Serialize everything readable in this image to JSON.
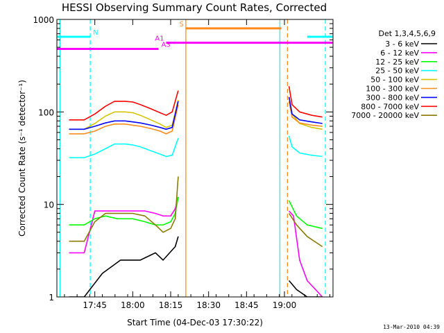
{
  "chart_data": {
    "type": "line",
    "title": "HESSI Observing Summary Count Rates, Corrected",
    "xlabel": "Start Time (04-Dec-03 17:30:22)",
    "ylabel": "Corrected Count Rate (s⁻¹ detector⁻¹)",
    "y_scale": "log",
    "ylim": [
      1,
      1000
    ],
    "xlim_minutes": [
      17.5,
      19.32
    ],
    "x_tick_labels": [
      "17:45",
      "18:00",
      "18:15",
      "18:30",
      "18:45",
      "19:00"
    ],
    "x_tick_values": [
      17.75,
      18.0,
      18.25,
      18.5,
      18.75,
      19.0
    ],
    "y_tick_labels": [
      "1",
      "10",
      "100",
      "1000"
    ],
    "y_tick_values": [
      1,
      10,
      100,
      1000
    ],
    "legend_title": "Det 1,3,4,5,6,9",
    "legend_placement": "right",
    "data_gap": [
      18.31,
      19.02
    ],
    "series": [
      {
        "name": "3 - 6 keV",
        "color": "#000000",
        "x": [
          17.58,
          17.68,
          17.8,
          17.92,
          18.05,
          18.15,
          18.2,
          18.28,
          18.3,
          19.03,
          19.08,
          19.15,
          19.25
        ],
        "y": [
          1.0,
          1.0,
          1.8,
          2.5,
          2.5,
          3.0,
          2.5,
          3.5,
          4.5,
          1.5,
          1.2,
          1.0,
          1.0
        ]
      },
      {
        "name": "6 - 12 keV",
        "color": "#ff00ff",
        "x": [
          17.58,
          17.68,
          17.75,
          17.82,
          17.9,
          18.0,
          18.08,
          18.15,
          18.2,
          18.25,
          18.28,
          18.3,
          19.03,
          19.06,
          19.1,
          19.15,
          19.25
        ],
        "y": [
          3.0,
          3.0,
          8.5,
          8.5,
          8.5,
          8.5,
          8.5,
          8.0,
          7.5,
          7.5,
          9.0,
          12.0,
          8.5,
          7.5,
          2.5,
          1.5,
          1.0
        ]
      },
      {
        "name": "12 - 25 keV",
        "color": "#00ff00",
        "x": [
          17.58,
          17.68,
          17.75,
          17.82,
          17.9,
          18.0,
          18.08,
          18.15,
          18.2,
          18.25,
          18.28,
          18.3,
          19.03,
          19.08,
          19.15,
          19.25
        ],
        "y": [
          6.0,
          6.0,
          7.0,
          7.5,
          7.0,
          7.0,
          6.5,
          6.0,
          6.0,
          6.5,
          8.0,
          12.0,
          11.0,
          7.5,
          6.0,
          5.5
        ]
      },
      {
        "name": "25 - 50 keV",
        "color": "#00ffff",
        "x": [
          17.58,
          17.68,
          17.75,
          17.82,
          17.88,
          17.95,
          18.0,
          18.05,
          18.12,
          18.18,
          18.22,
          18.26,
          18.3,
          19.03,
          19.05,
          19.1,
          19.18,
          19.25
        ],
        "y": [
          32,
          32,
          35,
          40,
          45,
          45,
          44,
          42,
          38,
          35,
          33,
          34,
          52,
          55,
          42,
          36,
          34,
          33
        ]
      },
      {
        "name": "50 - 100 keV",
        "color": "#d4c400",
        "x": [
          17.58,
          17.68,
          17.75,
          17.82,
          17.88,
          17.95,
          18.0,
          18.05,
          18.12,
          18.18,
          18.22,
          18.26,
          18.3,
          19.03,
          19.05,
          19.1,
          19.18,
          19.25
        ],
        "y": [
          65,
          65,
          75,
          90,
          100,
          100,
          98,
          92,
          82,
          74,
          68,
          72,
          135,
          145,
          95,
          75,
          68,
          65
        ]
      },
      {
        "name": "100 - 300 keV",
        "color": "#ff8c1a",
        "x": [
          17.58,
          17.68,
          17.75,
          17.82,
          17.88,
          17.95,
          18.0,
          18.05,
          18.12,
          18.18,
          18.22,
          18.26,
          18.3,
          19.03,
          19.05,
          19.1,
          19.18,
          19.25
        ],
        "y": [
          58,
          58,
          62,
          70,
          74,
          74,
          72,
          70,
          66,
          62,
          58,
          62,
          120,
          130,
          88,
          76,
          72,
          70
        ]
      },
      {
        "name": "300 - 800 keV",
        "color": "#0000ff",
        "x": [
          17.58,
          17.68,
          17.75,
          17.82,
          17.88,
          17.95,
          18.0,
          18.05,
          18.12,
          18.18,
          18.22,
          18.26,
          18.3,
          19.03,
          19.05,
          19.1,
          19.18,
          19.25
        ],
        "y": [
          65,
          65,
          70,
          76,
          80,
          80,
          78,
          76,
          72,
          68,
          65,
          68,
          130,
          145,
          95,
          82,
          78,
          75
        ]
      },
      {
        "name": "800 - 7000 keV",
        "color": "#ff0000",
        "x": [
          17.58,
          17.68,
          17.75,
          17.82,
          17.88,
          17.95,
          18.0,
          18.05,
          18.12,
          18.18,
          18.22,
          18.26,
          18.3,
          19.03,
          19.05,
          19.1,
          19.18,
          19.25
        ],
        "y": [
          82,
          82,
          95,
          115,
          130,
          130,
          128,
          120,
          108,
          98,
          92,
          100,
          170,
          190,
          120,
          100,
          92,
          88
        ]
      },
      {
        "name": "7000 - 20000 keV",
        "color": "#8b7a00",
        "x": [
          17.58,
          17.68,
          17.75,
          17.82,
          17.9,
          18.0,
          18.08,
          18.15,
          18.2,
          18.25,
          18.28,
          18.3,
          19.03,
          19.08,
          19.15,
          19.25
        ],
        "y": [
          4.0,
          4.0,
          6.5,
          8.0,
          8.0,
          8.0,
          7.5,
          6.0,
          5.0,
          5.5,
          7.0,
          20.0,
          8.0,
          6.0,
          4.5,
          3.5
        ]
      }
    ],
    "flag_bars": [
      {
        "label": "N",
        "color": "#00ffff",
        "y": 650,
        "label_pos": "left",
        "segments": [
          [
            17.5,
            17.72
          ],
          [
            19.15,
            19.32
          ]
        ]
      },
      {
        "label": "S",
        "color": "#ff8c1a",
        "y": 800,
        "label_pos": "left",
        "segments": [
          [
            18.35,
            18.98
          ]
        ]
      },
      {
        "label": "A1",
        "color": "#ff00ff",
        "y": 560,
        "label_pos": "left",
        "segments": [
          [
            18.22,
            19.32
          ]
        ]
      },
      {
        "label": "A3",
        "color": "#ff00ff",
        "y": 480,
        "label_pos": "right",
        "segments": [
          [
            17.5,
            18.17
          ]
        ]
      }
    ],
    "vertical_markers": [
      {
        "x": 17.52,
        "color": "#00ffff",
        "style": "solid"
      },
      {
        "x": 17.72,
        "color": "#00ffff",
        "style": "dashed"
      },
      {
        "x": 18.35,
        "color": "#ff8c1a",
        "style": "solid"
      },
      {
        "x": 18.97,
        "color": "#00ffff",
        "style": "solid"
      },
      {
        "x": 19.02,
        "color": "#ff8c1a",
        "style": "dashed"
      },
      {
        "x": 19.27,
        "color": "#00ffff",
        "style": "dashed"
      }
    ],
    "footer_timestamp": "13-Mar-2010 04:39"
  }
}
